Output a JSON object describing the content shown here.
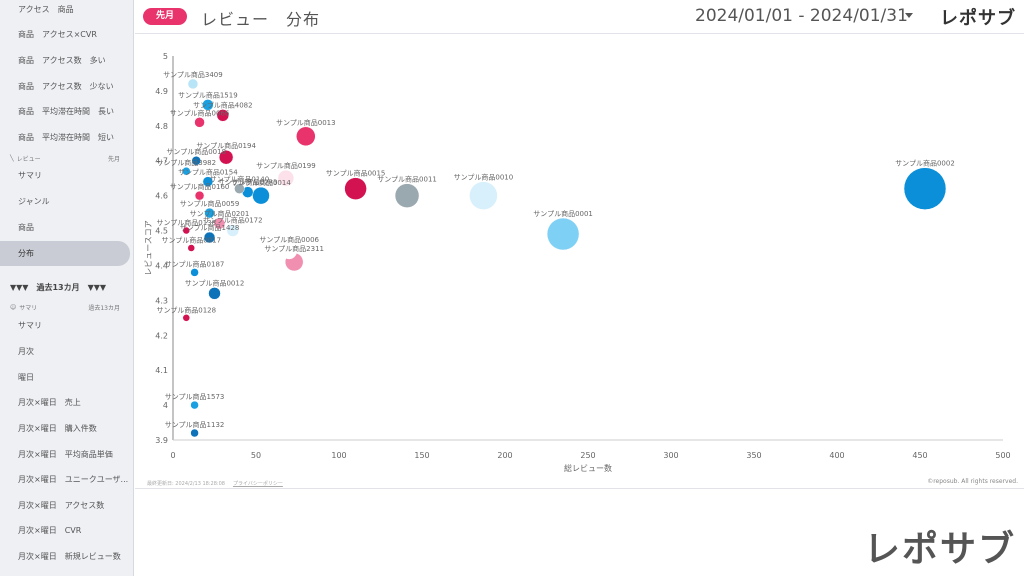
{
  "sidebar": {
    "items_top": [
      {
        "label": "アクセス　商品"
      },
      {
        "label": "商品　アクセス×CVR"
      },
      {
        "label": "商品　アクセス数　多い"
      },
      {
        "label": "商品　アクセス数　少ない"
      },
      {
        "label": "商品　平均滞在時間　長い"
      },
      {
        "label": "商品　平均滞在時間　短い"
      }
    ],
    "review_section": {
      "title": "レビュー",
      "period": "先月"
    },
    "review_items": [
      {
        "label": "サマリ"
      },
      {
        "label": "ジャンル"
      },
      {
        "label": "商品"
      },
      {
        "label": "分布"
      }
    ],
    "period_label": "過去13カ月",
    "summary_section": {
      "title": "サマリ",
      "period": "過去13カ月"
    },
    "summary_items": [
      {
        "label": "サマリ"
      },
      {
        "label": "月次"
      },
      {
        "label": "曜日"
      },
      {
        "label": "月次×曜日　売上"
      },
      {
        "label": "月次×曜日　購入件数"
      },
      {
        "label": "月次×曜日　平均商品単価"
      },
      {
        "label": "月次×曜日　ユニークユーザ..."
      },
      {
        "label": "月次×曜日　アクセス数"
      },
      {
        "label": "月次×曜日　CVR"
      },
      {
        "label": "月次×曜日　新規レビュー数"
      }
    ]
  },
  "header": {
    "badge": "先月",
    "title": "レビュー　分布",
    "date_range": "2024/01/01 - 2024/01/31",
    "logo": "レポサブ"
  },
  "footer": {
    "updated": "最終更新日: 2024/2/13 18:28:08",
    "privacy": "プライバシーポリシー",
    "copyright": "©reposub. All rights reserved.",
    "logo_large": "レポサブ"
  },
  "colors": {
    "accent": "#e8336d",
    "blue_dark": "#0e72b8",
    "blue": "#1aa0e0",
    "blue_light": "#7fd0f5",
    "blue_pale": "#d7f0fb",
    "pink": "#e8336d",
    "crimson": "#d31252",
    "pink_light": "#f08fb0",
    "gray": "#9aa8b0"
  },
  "chart_data": {
    "type": "scatter",
    "xlabel": "総レビュー数",
    "ylabel": "レビュースコア",
    "xlim": [
      0,
      500
    ],
    "ylim": [
      3.9,
      5
    ],
    "xticks": [
      0,
      50,
      100,
      150,
      200,
      250,
      300,
      350,
      400,
      450,
      500
    ],
    "yticks": [
      3.9,
      4,
      4.1,
      4.2,
      4.3,
      4.4,
      4.5,
      4.6,
      4.7,
      4.8,
      4.9,
      5
    ],
    "points": [
      {
        "label": "サンプル商品0002",
        "x": 453,
        "y": 4.62,
        "size": 40,
        "color": "#0a8fd8"
      },
      {
        "label": "サンプル商品0001",
        "x": 235,
        "y": 4.49,
        "size": 30,
        "color": "#7fd0f5"
      },
      {
        "label": "サンプル商品0010",
        "x": 187,
        "y": 4.6,
        "size": 26,
        "color": "#d7f0fb"
      },
      {
        "label": "サンプル商品0011",
        "x": 141,
        "y": 4.6,
        "size": 22,
        "color": "#9aa8b0"
      },
      {
        "label": "サンプル商品0015",
        "x": 110,
        "y": 4.62,
        "size": 20,
        "color": "#d31252"
      },
      {
        "label": "サンプル商品0013",
        "x": 80,
        "y": 4.77,
        "size": 17,
        "color": "#e8336d"
      },
      {
        "label": "サンプル商品0014",
        "x": 53,
        "y": 4.6,
        "size": 15,
        "color": "#0a8fd8"
      },
      {
        "label": "サンプル商品0199",
        "x": 68,
        "y": 4.65,
        "size": 14,
        "color": "#fce0ea"
      },
      {
        "label": "サンプル商品0006",
        "x": 70,
        "y": 4.44,
        "size": 13,
        "color": "#ffffff"
      },
      {
        "label": "サンプル商品2311",
        "x": 73,
        "y": 4.41,
        "size": 16,
        "color": "#f08fb0"
      },
      {
        "label": "サンプル商品0194",
        "x": 32,
        "y": 4.71,
        "size": 12,
        "color": "#d31252"
      },
      {
        "label": "サンプル商品0012",
        "x": 25,
        "y": 4.32,
        "size": 10,
        "color": "#0e72b8"
      },
      {
        "label": "サンプル商品3409",
        "x": 12,
        "y": 4.92,
        "size": 8,
        "color": "#b8e4f7"
      },
      {
        "label": "サンプル商品1519",
        "x": 21,
        "y": 4.86,
        "size": 9,
        "color": "#1aa0e0"
      },
      {
        "label": "サンプル商品4082",
        "x": 30,
        "y": 4.83,
        "size": 10,
        "color": "#d31252"
      },
      {
        "label": "サンプル商品0066",
        "x": 16,
        "y": 4.81,
        "size": 8,
        "color": "#e8336d"
      },
      {
        "label": "サンプル商品0018",
        "x": 14,
        "y": 4.7,
        "size": 7,
        "color": "#0e72b8"
      },
      {
        "label": "サンプル商品3982",
        "x": 8,
        "y": 4.67,
        "size": 6,
        "color": "#1aa0e0"
      },
      {
        "label": "サンプル商品0154",
        "x": 21,
        "y": 4.64,
        "size": 8,
        "color": "#0a8fd8"
      },
      {
        "label": "サンプル商品0140",
        "x": 40,
        "y": 4.62,
        "size": 8,
        "color": "#9aa8b0"
      },
      {
        "label": "サンプル商品0283",
        "x": 45,
        "y": 4.61,
        "size": 9,
        "color": "#0a8fd8"
      },
      {
        "label": "サンプル商品0160",
        "x": 16,
        "y": 4.6,
        "size": 7,
        "color": "#e8336d"
      },
      {
        "label": "サンプル商品0059",
        "x": 22,
        "y": 4.55,
        "size": 8,
        "color": "#1aa0e0"
      },
      {
        "label": "サンプル商品0172",
        "x": 36,
        "y": 4.5,
        "size": 10,
        "color": "#d7f0fb"
      },
      {
        "label": "サンプル商品0201",
        "x": 28,
        "y": 4.52,
        "size": 9,
        "color": "#f08fb0"
      },
      {
        "label": "サンプル商品1428",
        "x": 22,
        "y": 4.48,
        "size": 9,
        "color": "#0e72b8"
      },
      {
        "label": "サンプル商品0138",
        "x": 8,
        "y": 4.5,
        "size": 5,
        "color": "#d31252"
      },
      {
        "label": "サンプル商品0017",
        "x": 11,
        "y": 4.45,
        "size": 5,
        "color": "#d31252"
      },
      {
        "label": "サンプル商品0187",
        "x": 13,
        "y": 4.38,
        "size": 6,
        "color": "#0a8fd8"
      },
      {
        "label": "サンプル商品0128",
        "x": 8,
        "y": 4.25,
        "size": 5,
        "color": "#d31252"
      },
      {
        "label": "サンプル商品1573",
        "x": 13,
        "y": 4.0,
        "size": 6,
        "color": "#1aa0e0"
      },
      {
        "label": "サンプル商品1132",
        "x": 13,
        "y": 3.92,
        "size": 6,
        "color": "#0e72b8"
      }
    ]
  }
}
